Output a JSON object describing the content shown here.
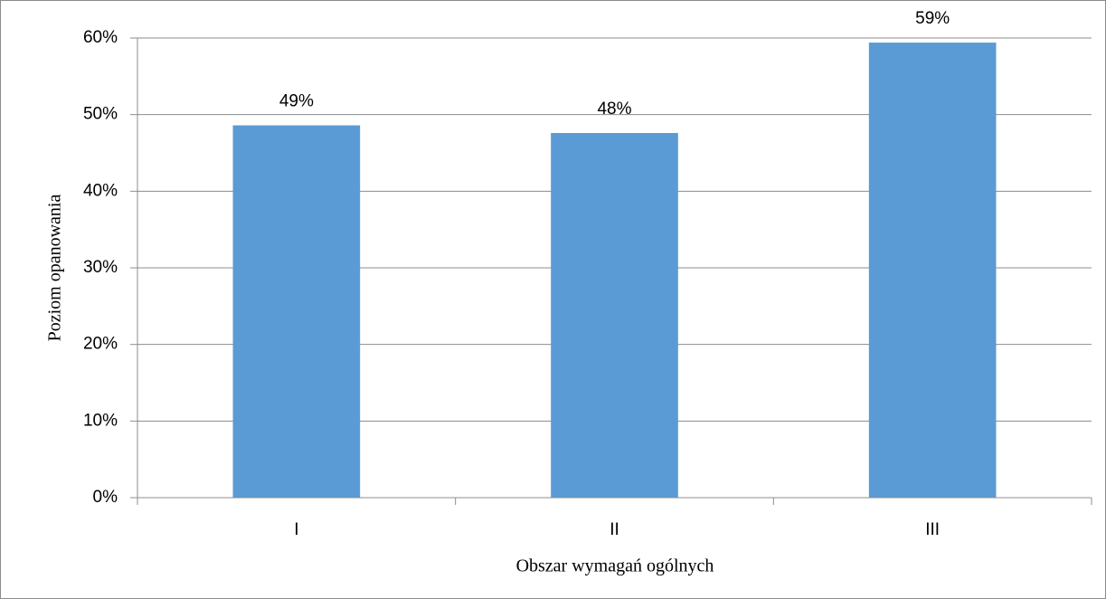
{
  "chart_data": {
    "type": "bar",
    "x_label": "Obszar wymagań ogólnych",
    "y_label": "Poziom opanowania",
    "categories": [
      "I",
      "II",
      "III"
    ],
    "values": [
      48.6,
      47.6,
      59.4
    ],
    "value_labels": [
      "49%",
      "48%",
      "59%"
    ],
    "color": "#5b9bd5",
    "ylim": [
      0,
      60
    ],
    "yticks": [
      {
        "value": 0,
        "label": "0%"
      },
      {
        "value": 10,
        "label": "10%"
      },
      {
        "value": 20,
        "label": "20%"
      },
      {
        "value": 30,
        "label": "30%"
      },
      {
        "value": 40,
        "label": "40%"
      },
      {
        "value": 50,
        "label": "50%"
      },
      {
        "value": 60,
        "label": "60%"
      }
    ],
    "grid": true
  }
}
